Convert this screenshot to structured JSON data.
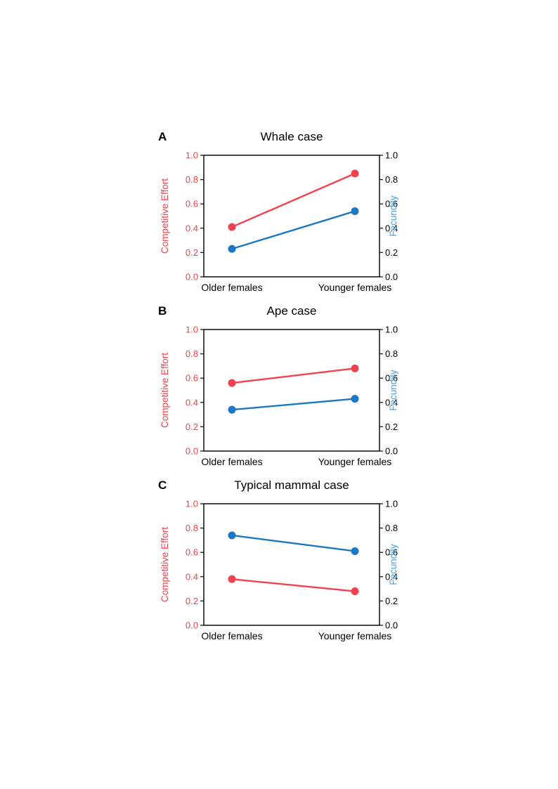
{
  "page": {
    "background": "#ffffff"
  },
  "colors": {
    "competitive": "#f2424d",
    "fecundity": "#1b78c4",
    "competitive_label": "#f2424d",
    "fecundity_label": "#49a4e6",
    "tick_left": "#f2424d",
    "tick_right": "#000000",
    "axis_line": "#1a1a1a",
    "text": "#000000"
  },
  "chart_data": [
    {
      "type": "line",
      "panel_label": "A",
      "title": "Whale case",
      "categories": [
        "Older females",
        "Younger females"
      ],
      "ylabel_left": "Competitive Effort",
      "ylabel_right": "Fecundity",
      "ylim": [
        0,
        1
      ],
      "y_ticks": [
        0.0,
        0.2,
        0.4,
        0.6,
        0.8,
        1.0
      ],
      "legend": "none",
      "series": [
        {
          "name": "Competitive Effort",
          "axis": "left",
          "color_key": "competitive",
          "values": [
            0.41,
            0.85
          ]
        },
        {
          "name": "Fecundity",
          "axis": "right",
          "color_key": "fecundity",
          "values": [
            0.23,
            0.54
          ]
        }
      ]
    },
    {
      "type": "line",
      "panel_label": "B",
      "title": "Ape case",
      "categories": [
        "Older females",
        "Younger females"
      ],
      "ylabel_left": "Competitive Effort",
      "ylabel_right": "Fecundity",
      "ylim": [
        0,
        1
      ],
      "y_ticks": [
        0.0,
        0.2,
        0.4,
        0.6,
        0.8,
        1.0
      ],
      "legend": "none",
      "series": [
        {
          "name": "Competitive Effort",
          "axis": "left",
          "color_key": "competitive",
          "values": [
            0.56,
            0.68
          ]
        },
        {
          "name": "Fecundity",
          "axis": "right",
          "color_key": "fecundity",
          "values": [
            0.34,
            0.43
          ]
        }
      ]
    },
    {
      "type": "line",
      "panel_label": "C",
      "title": "Typical mammal case",
      "categories": [
        "Older females",
        "Younger females"
      ],
      "ylabel_left": "Competitive Effort",
      "ylabel_right": "Fecundity",
      "ylim": [
        0,
        1
      ],
      "y_ticks": [
        0.0,
        0.2,
        0.4,
        0.6,
        0.8,
        1.0
      ],
      "legend": "none",
      "series": [
        {
          "name": "Competitive Effort",
          "axis": "left",
          "color_key": "competitive",
          "values": [
            0.38,
            0.28
          ]
        },
        {
          "name": "Fecundity",
          "axis": "right",
          "color_key": "fecundity",
          "values": [
            0.74,
            0.61
          ]
        }
      ]
    }
  ]
}
